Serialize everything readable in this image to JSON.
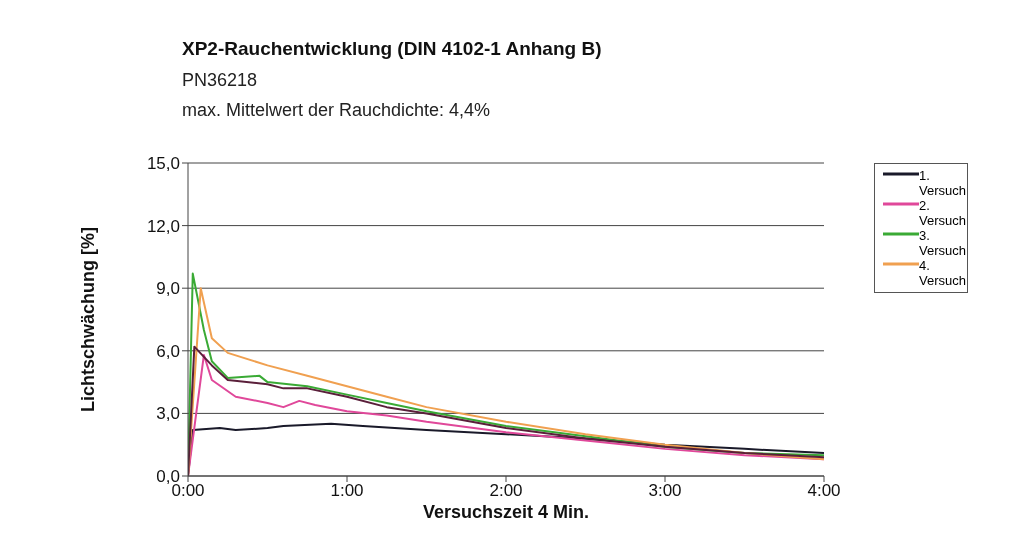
{
  "chart_data": {
    "type": "line",
    "title": "XP2-Rauchentwicklung (DIN 4102-1 Anhang B)",
    "subtitle": "PN36218",
    "annotations": [
      "max. Mittelwert der Rauchdichte: 4,4%"
    ],
    "xlabel": "Versuchszeit 4 Min.",
    "ylabel": "Lichtschwächung [%]",
    "xlim": [
      0,
      4
    ],
    "xticks": [
      {
        "value": 0,
        "label": "0:00"
      },
      {
        "value": 1,
        "label": "1:00"
      },
      {
        "value": 2,
        "label": "2:00"
      },
      {
        "value": 3,
        "label": "3:00"
      },
      {
        "value": 4,
        "label": "4:00"
      }
    ],
    "ylim": [
      0,
      15
    ],
    "yticks": [
      {
        "value": 0,
        "label": "0,0"
      },
      {
        "value": 3,
        "label": "3,0"
      },
      {
        "value": 6,
        "label": "6,0"
      },
      {
        "value": 9,
        "label": "9,0"
      },
      {
        "value": 12,
        "label": "12,0"
      },
      {
        "value": 15,
        "label": "15,0"
      }
    ],
    "grid": "y",
    "legend": "right",
    "marker": "none",
    "line_style": "solid",
    "series": [
      {
        "name": "1. Versuch",
        "color": "#1a1a2a",
        "x": [
          0,
          0.03,
          0.2,
          0.3,
          0.5,
          0.6,
          0.9,
          1.1,
          1.5,
          2,
          2.5,
          3,
          3.5,
          4
        ],
        "values": [
          0,
          2.2,
          2.3,
          2.2,
          2.3,
          2.4,
          2.5,
          2.4,
          2.2,
          2.0,
          1.8,
          1.5,
          1.3,
          1.1
        ]
      },
      {
        "name": "2. Versuch",
        "color": "#e0489a",
        "x": [
          0,
          0.1,
          0.15,
          0.3,
          0.5,
          0.6,
          0.7,
          0.8,
          1,
          1.25,
          1.5,
          2,
          2.5,
          3,
          3.5,
          4
        ],
        "values": [
          0,
          5.8,
          4.6,
          3.8,
          3.5,
          3.3,
          3.6,
          3.4,
          3.1,
          2.9,
          2.6,
          2.1,
          1.7,
          1.3,
          1.0,
          0.8
        ]
      },
      {
        "name": "3. Versuch",
        "color": "#3aaa35",
        "x": [
          0,
          0.03,
          0.1,
          0.15,
          0.25,
          0.45,
          0.5,
          0.75,
          1,
          1.25,
          1.5,
          2,
          2.5,
          3,
          3.5,
          4
        ],
        "values": [
          0,
          9.7,
          7.0,
          5.5,
          4.7,
          4.8,
          4.5,
          4.3,
          3.9,
          3.5,
          3.1,
          2.4,
          1.9,
          1.4,
          1.1,
          1.0
        ]
      },
      {
        "name": "4. Versuch",
        "color": "#f0a050",
        "x": [
          0,
          0.08,
          0.15,
          0.25,
          0.5,
          0.75,
          1,
          1.25,
          1.5,
          2,
          2.5,
          3,
          3.5,
          4
        ],
        "values": [
          0,
          9.0,
          6.6,
          5.9,
          5.3,
          4.8,
          4.3,
          3.8,
          3.3,
          2.6,
          2.0,
          1.5,
          1.1,
          0.8
        ]
      },
      {
        "color": "#5a1f3a",
        "x": [
          0,
          0.04,
          0.15,
          0.25,
          0.5,
          0.6,
          0.75,
          1,
          1.25,
          1.5,
          2,
          2.5,
          3,
          3.5,
          4
        ],
        "values": [
          0,
          6.2,
          5.3,
          4.6,
          4.4,
          4.2,
          4.2,
          3.8,
          3.3,
          3.0,
          2.3,
          1.8,
          1.4,
          1.1,
          0.9
        ]
      }
    ]
  }
}
